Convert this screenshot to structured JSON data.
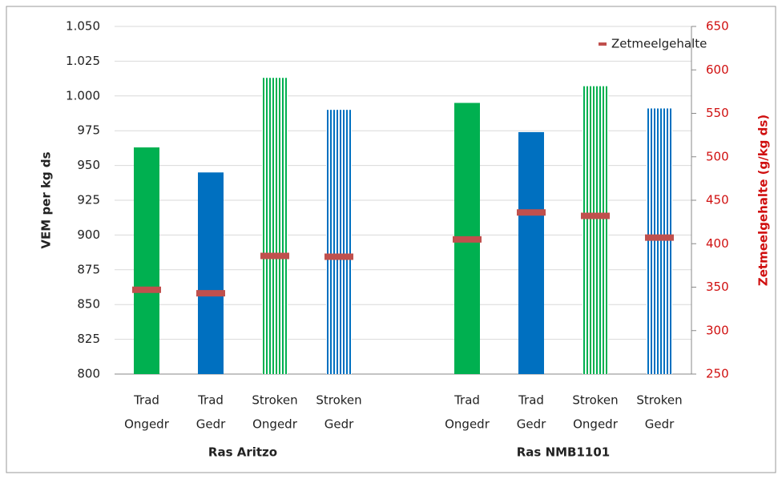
{
  "chart_data": {
    "type": "bar",
    "categories": [
      [
        "Trad",
        "Ongedr"
      ],
      [
        "Trad",
        "Gedr"
      ],
      [
        "Stroken",
        "Ongedr"
      ],
      [
        "Stroken",
        "Gedr"
      ],
      null,
      [
        "Trad",
        "Ongedr"
      ],
      [
        "Trad",
        "Gedr"
      ],
      [
        "Stroken",
        "Ongedr"
      ],
      [
        "Stroken",
        "Gedr"
      ]
    ],
    "groups": [
      "Ras Aritzo",
      "Ras NMB1101"
    ],
    "ylabel": "VEM per kg ds",
    "y2label": "Zetmeelgehalte (g/kg ds)",
    "ylim": [
      800,
      1050
    ],
    "yticks": [
      800,
      825,
      850,
      875,
      900,
      925,
      950,
      975,
      {
        "value": 1000,
        "label": "1.000"
      },
      {
        "value": 1025,
        "label": "1.025"
      },
      {
        "value": 1050,
        "label": "1.050"
      }
    ],
    "y2lim": [
      250,
      650
    ],
    "y2ticks": [
      250,
      300,
      350,
      400,
      450,
      500,
      550,
      600,
      650
    ],
    "series": [
      {
        "values": [
          963,
          945,
          1013,
          990,
          null,
          995,
          974,
          1007,
          991
        ],
        "colors": [
          "#00b050",
          "#0070c0",
          "#00b050",
          "#0070c0",
          null,
          "#00b050",
          "#0070c0",
          "#00b050",
          "#0070c0"
        ],
        "patterns": [
          "solid",
          "solid",
          "striped",
          "striped",
          null,
          "solid",
          "solid",
          "striped",
          "striped"
        ]
      },
      {
        "name": "Zetmeelgehalte",
        "color": "#c0504d",
        "axis": "y2",
        "values": [
          347,
          343,
          386,
          385,
          null,
          405,
          436,
          432,
          407
        ]
      }
    ],
    "legend": "top-right"
  }
}
